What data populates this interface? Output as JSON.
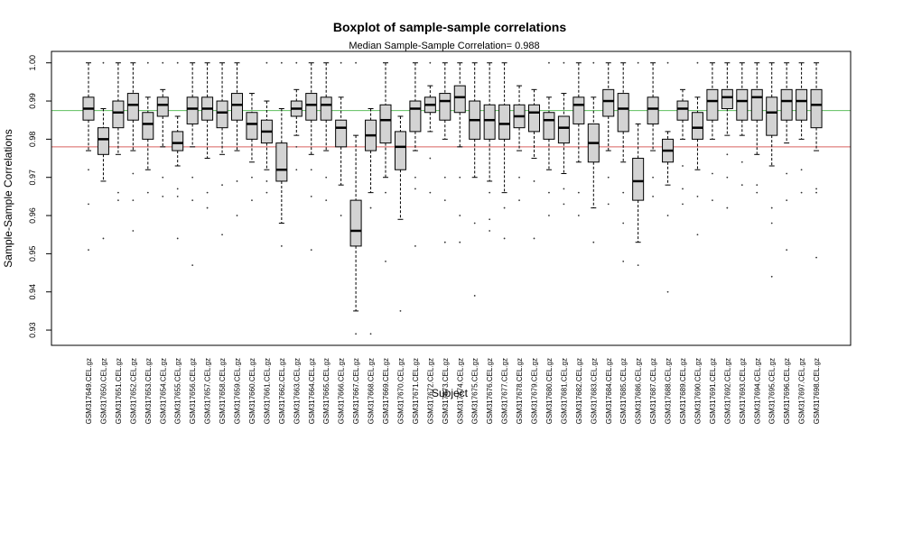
{
  "chart_data": {
    "type": "boxplot",
    "title": "Boxplot of sample-sample correlations",
    "subtitle": "Median Sample-Sample Correlation= 0.988",
    "xlabel": "Subject",
    "ylabel": "Sample-Sample Correlations",
    "ylim": [
      0.926,
      1.003
    ],
    "yticks": [
      0.93,
      0.94,
      0.95,
      0.96,
      0.97,
      0.98,
      0.99,
      1.0
    ],
    "ytick_labels": [
      "0.93",
      "0.94",
      "0.95",
      "0.96",
      "0.97",
      "0.98",
      "0.99",
      "1.00"
    ],
    "reference_lines": [
      {
        "value": 0.9875,
        "color": "#5fbf5f"
      },
      {
        "value": 0.978,
        "color": "#d9605f"
      }
    ],
    "box_fill": "#d3d3d3",
    "categories": [
      "GSM317649.CEL.gz",
      "GSM317650.CEL.gz",
      "GSM317651.CEL.gz",
      "GSM317652.CEL.gz",
      "GSM317653.CEL.gz",
      "GSM317654.CEL.gz",
      "GSM317655.CEL.gz",
      "GSM317656.CEL.gz",
      "GSM317657.CEL.gz",
      "GSM317658.CEL.gz",
      "GSM317659.CEL.gz",
      "GSM317660.CEL.gz",
      "GSM317661.CEL.gz",
      "GSM317662.CEL.gz",
      "GSM317663.CEL.gz",
      "GSM317664.CEL.gz",
      "GSM317665.CEL.gz",
      "GSM317666.CEL.gz",
      "GSM317667.CEL.gz",
      "GSM317668.CEL.gz",
      "GSM317669.CEL.gz",
      "GSM317670.CEL.gz",
      "GSM317671.CEL.gz",
      "GSM317672.CEL.gz",
      "GSM317673.CEL.gz",
      "GSM317674.CEL.gz",
      "GSM317675.CEL.gz",
      "GSM317676.CEL.gz",
      "GSM317677.CEL.gz",
      "GSM317678.CEL.gz",
      "GSM317679.CEL.gz",
      "GSM317680.CEL.gz",
      "GSM317681.CEL.gz",
      "GSM317682.CEL.gz",
      "GSM317683.CEL.gz",
      "GSM317684.CEL.gz",
      "GSM317685.CEL.gz",
      "GSM317686.CEL.gz",
      "GSM317687.CEL.gz",
      "GSM317688.CEL.gz",
      "GSM317689.CEL.gz",
      "GSM317690.CEL.gz",
      "GSM317691.CEL.gz",
      "GSM317692.CEL.gz",
      "GSM317693.CEL.gz",
      "GSM317694.CEL.gz",
      "GSM317695.CEL.gz",
      "GSM317696.CEL.gz",
      "GSM317697.CEL.gz",
      "GSM317698.CEL.gz"
    ],
    "boxes": [
      {
        "lower_whisker": 0.977,
        "q1": 0.985,
        "median": 0.988,
        "q3": 0.991,
        "upper_whisker": 1.0,
        "outliers": [
          0.972,
          0.963,
          0.951
        ]
      },
      {
        "lower_whisker": 0.969,
        "q1": 0.976,
        "median": 0.98,
        "q3": 0.983,
        "upper_whisker": 0.988,
        "outliers": [
          0.954,
          1.0
        ]
      },
      {
        "lower_whisker": 0.976,
        "q1": 0.983,
        "median": 0.987,
        "q3": 0.99,
        "upper_whisker": 1.0,
        "outliers": [
          0.966,
          0.964
        ]
      },
      {
        "lower_whisker": 0.977,
        "q1": 0.985,
        "median": 0.989,
        "q3": 0.992,
        "upper_whisker": 1.0,
        "outliers": [
          0.971,
          0.964,
          0.956
        ]
      },
      {
        "lower_whisker": 0.972,
        "q1": 0.98,
        "median": 0.984,
        "q3": 0.987,
        "upper_whisker": 0.991,
        "outliers": [
          0.966,
          1.0
        ]
      },
      {
        "lower_whisker": 0.978,
        "q1": 0.986,
        "median": 0.989,
        "q3": 0.991,
        "upper_whisker": 0.993,
        "outliers": [
          0.97,
          0.965,
          1.0
        ]
      },
      {
        "lower_whisker": 0.973,
        "q1": 0.977,
        "median": 0.979,
        "q3": 0.982,
        "upper_whisker": 0.986,
        "outliers": [
          0.967,
          0.965,
          0.954,
          1.0
        ]
      },
      {
        "lower_whisker": 0.978,
        "q1": 0.984,
        "median": 0.988,
        "q3": 0.991,
        "upper_whisker": 1.0,
        "outliers": [
          0.97,
          0.964,
          0.947
        ]
      },
      {
        "lower_whisker": 0.975,
        "q1": 0.985,
        "median": 0.988,
        "q3": 0.991,
        "upper_whisker": 1.0,
        "outliers": [
          0.966,
          0.962
        ]
      },
      {
        "lower_whisker": 0.976,
        "q1": 0.983,
        "median": 0.987,
        "q3": 0.99,
        "upper_whisker": 1.0,
        "outliers": [
          0.968,
          0.955
        ]
      },
      {
        "lower_whisker": 0.977,
        "q1": 0.985,
        "median": 0.989,
        "q3": 0.992,
        "upper_whisker": 1.0,
        "outliers": [
          0.969,
          0.96
        ]
      },
      {
        "lower_whisker": 0.974,
        "q1": 0.98,
        "median": 0.984,
        "q3": 0.987,
        "upper_whisker": 0.992,
        "outliers": [
          0.97,
          0.964
        ]
      },
      {
        "lower_whisker": 0.972,
        "q1": 0.979,
        "median": 0.982,
        "q3": 0.985,
        "upper_whisker": 0.99,
        "outliers": [
          0.969,
          0.966,
          1.0
        ]
      },
      {
        "lower_whisker": 0.958,
        "q1": 0.969,
        "median": 0.972,
        "q3": 0.979,
        "upper_whisker": 0.988,
        "outliers": [
          0.952,
          1.0
        ]
      },
      {
        "lower_whisker": 0.981,
        "q1": 0.986,
        "median": 0.988,
        "q3": 0.99,
        "upper_whisker": 0.993,
        "outliers": [
          0.978,
          0.972,
          1.0
        ]
      },
      {
        "lower_whisker": 0.976,
        "q1": 0.985,
        "median": 0.989,
        "q3": 0.992,
        "upper_whisker": 1.0,
        "outliers": [
          0.972,
          0.965,
          0.951
        ]
      },
      {
        "lower_whisker": 0.977,
        "q1": 0.985,
        "median": 0.989,
        "q3": 0.991,
        "upper_whisker": 1.0,
        "outliers": [
          0.97,
          0.964
        ]
      },
      {
        "lower_whisker": 0.968,
        "q1": 0.978,
        "median": 0.983,
        "q3": 0.985,
        "upper_whisker": 0.991,
        "outliers": [
          0.96,
          1.0
        ]
      },
      {
        "lower_whisker": 0.935,
        "q1": 0.952,
        "median": 0.956,
        "q3": 0.964,
        "upper_whisker": 0.981,
        "outliers": [
          0.929,
          1.0
        ]
      },
      {
        "lower_whisker": 0.966,
        "q1": 0.977,
        "median": 0.981,
        "q3": 0.985,
        "upper_whisker": 0.988,
        "outliers": [
          0.962,
          0.929
        ]
      },
      {
        "lower_whisker": 0.97,
        "q1": 0.979,
        "median": 0.985,
        "q3": 0.989,
        "upper_whisker": 1.0,
        "outliers": [
          0.966,
          0.948
        ]
      },
      {
        "lower_whisker": 0.959,
        "q1": 0.972,
        "median": 0.978,
        "q3": 0.982,
        "upper_whisker": 0.986,
        "outliers": [
          0.935
        ]
      },
      {
        "lower_whisker": 0.977,
        "q1": 0.982,
        "median": 0.988,
        "q3": 0.99,
        "upper_whisker": 1.0,
        "outliers": [
          0.97,
          0.967,
          0.952
        ]
      },
      {
        "lower_whisker": 0.982,
        "q1": 0.987,
        "median": 0.989,
        "q3": 0.991,
        "upper_whisker": 0.994,
        "outliers": [
          0.975,
          0.966,
          1.0
        ]
      },
      {
        "lower_whisker": 0.98,
        "q1": 0.985,
        "median": 0.99,
        "q3": 0.992,
        "upper_whisker": 1.0,
        "outliers": [
          0.97,
          0.964,
          0.953
        ]
      },
      {
        "lower_whisker": 0.978,
        "q1": 0.987,
        "median": 0.991,
        "q3": 0.994,
        "upper_whisker": 1.0,
        "outliers": [
          0.97,
          0.96,
          0.953
        ]
      },
      {
        "lower_whisker": 0.97,
        "q1": 0.98,
        "median": 0.985,
        "q3": 0.99,
        "upper_whisker": 1.0,
        "outliers": [
          0.958,
          0.939
        ]
      },
      {
        "lower_whisker": 0.969,
        "q1": 0.98,
        "median": 0.985,
        "q3": 0.989,
        "upper_whisker": 1.0,
        "outliers": [
          0.966,
          0.959,
          0.956
        ]
      },
      {
        "lower_whisker": 0.966,
        "q1": 0.98,
        "median": 0.984,
        "q3": 0.989,
        "upper_whisker": 1.0,
        "outliers": [
          0.962,
          0.954
        ]
      },
      {
        "lower_whisker": 0.977,
        "q1": 0.983,
        "median": 0.986,
        "q3": 0.989,
        "upper_whisker": 0.994,
        "outliers": [
          0.97,
          0.964
        ]
      },
      {
        "lower_whisker": 0.975,
        "q1": 0.982,
        "median": 0.987,
        "q3": 0.989,
        "upper_whisker": 0.993,
        "outliers": [
          0.969,
          0.954
        ]
      },
      {
        "lower_whisker": 0.972,
        "q1": 0.98,
        "median": 0.985,
        "q3": 0.987,
        "upper_whisker": 0.991,
        "outliers": [
          0.966,
          0.96,
          1.0
        ]
      },
      {
        "lower_whisker": 0.971,
        "q1": 0.979,
        "median": 0.983,
        "q3": 0.986,
        "upper_whisker": 0.992,
        "outliers": [
          0.967,
          0.963,
          1.0
        ]
      },
      {
        "lower_whisker": 0.974,
        "q1": 0.984,
        "median": 0.989,
        "q3": 0.991,
        "upper_whisker": 1.0,
        "outliers": [
          0.966,
          0.96
        ]
      },
      {
        "lower_whisker": 0.962,
        "q1": 0.974,
        "median": 0.979,
        "q3": 0.984,
        "upper_whisker": 0.991,
        "outliers": [
          0.953,
          1.0
        ]
      },
      {
        "lower_whisker": 0.977,
        "q1": 0.986,
        "median": 0.99,
        "q3": 0.993,
        "upper_whisker": 1.0,
        "outliers": [
          0.97,
          0.963
        ]
      },
      {
        "lower_whisker": 0.974,
        "q1": 0.982,
        "median": 0.988,
        "q3": 0.992,
        "upper_whisker": 1.0,
        "outliers": [
          0.966,
          0.958,
          0.948
        ]
      },
      {
        "lower_whisker": 0.953,
        "q1": 0.964,
        "median": 0.969,
        "q3": 0.975,
        "upper_whisker": 0.984,
        "outliers": [
          0.947,
          1.0
        ]
      },
      {
        "lower_whisker": 0.977,
        "q1": 0.984,
        "median": 0.988,
        "q3": 0.991,
        "upper_whisker": 1.0,
        "outliers": [
          0.97,
          0.965
        ]
      },
      {
        "lower_whisker": 0.968,
        "q1": 0.974,
        "median": 0.977,
        "q3": 0.98,
        "upper_whisker": 0.982,
        "outliers": [
          0.96,
          0.94,
          1.0
        ]
      },
      {
        "lower_whisker": 0.98,
        "q1": 0.985,
        "median": 0.988,
        "q3": 0.99,
        "upper_whisker": 0.993,
        "outliers": [
          0.973,
          0.967,
          0.963
        ]
      },
      {
        "lower_whisker": 0.972,
        "q1": 0.98,
        "median": 0.983,
        "q3": 0.987,
        "upper_whisker": 0.991,
        "outliers": [
          0.965,
          0.955,
          1.0
        ]
      },
      {
        "lower_whisker": 0.98,
        "q1": 0.985,
        "median": 0.99,
        "q3": 0.993,
        "upper_whisker": 1.0,
        "outliers": [
          0.971,
          0.964
        ]
      },
      {
        "lower_whisker": 0.981,
        "q1": 0.988,
        "median": 0.991,
        "q3": 0.993,
        "upper_whisker": 1.0,
        "outliers": [
          0.976,
          0.97,
          0.962
        ]
      },
      {
        "lower_whisker": 0.981,
        "q1": 0.985,
        "median": 0.99,
        "q3": 0.993,
        "upper_whisker": 1.0,
        "outliers": [
          0.974,
          0.968
        ]
      },
      {
        "lower_whisker": 0.976,
        "q1": 0.985,
        "median": 0.991,
        "q3": 0.993,
        "upper_whisker": 1.0,
        "outliers": [
          0.968,
          0.966
        ]
      },
      {
        "lower_whisker": 0.973,
        "q1": 0.981,
        "median": 0.987,
        "q3": 0.991,
        "upper_whisker": 1.0,
        "outliers": [
          0.962,
          0.958,
          0.944
        ]
      },
      {
        "lower_whisker": 0.979,
        "q1": 0.985,
        "median": 0.99,
        "q3": 0.993,
        "upper_whisker": 1.0,
        "outliers": [
          0.971,
          0.964,
          0.951
        ]
      },
      {
        "lower_whisker": 0.98,
        "q1": 0.985,
        "median": 0.99,
        "q3": 0.993,
        "upper_whisker": 1.0,
        "outliers": [
          0.972,
          0.966
        ]
      },
      {
        "lower_whisker": 0.977,
        "q1": 0.983,
        "median": 0.989,
        "q3": 0.993,
        "upper_whisker": 1.0,
        "outliers": [
          0.967,
          0.966,
          0.949
        ]
      }
    ]
  }
}
